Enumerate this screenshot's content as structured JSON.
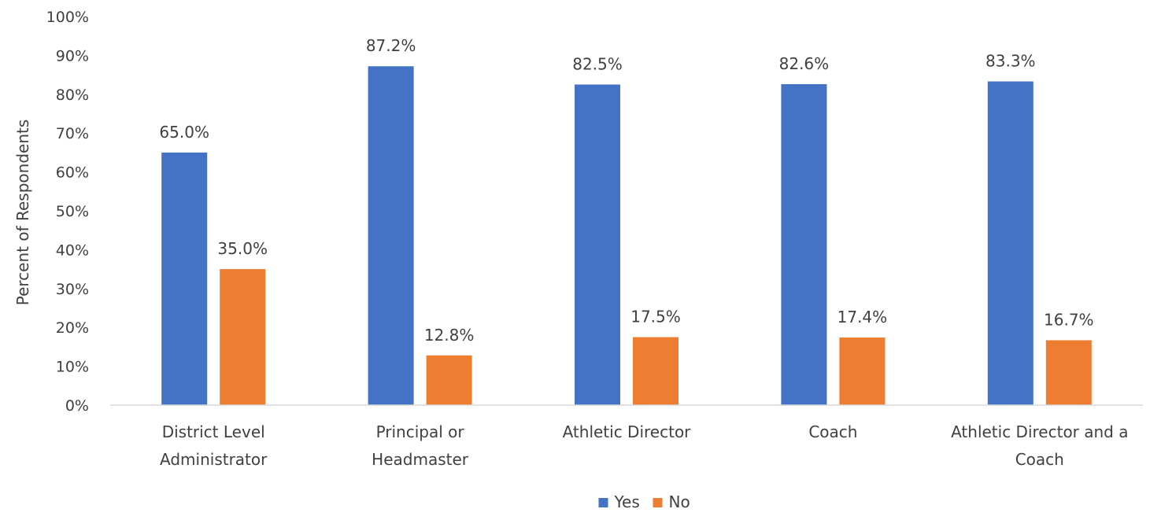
{
  "chart_data": {
    "type": "bar",
    "title": "",
    "xlabel": "",
    "ylabel": "Percent of Respondents",
    "ylim": [
      0,
      100
    ],
    "y_ticks": [
      "0%",
      "10%",
      "20%",
      "30%",
      "40%",
      "50%",
      "60%",
      "70%",
      "80%",
      "90%",
      "100%"
    ],
    "y_tick_values": [
      0,
      10,
      20,
      30,
      40,
      50,
      60,
      70,
      80,
      90,
      100
    ],
    "grid": false,
    "legend_position": "bottom",
    "categories": [
      [
        "District Level",
        "Administrator"
      ],
      [
        "Principal or",
        "Headmaster"
      ],
      [
        "Athletic Director"
      ],
      [
        "Coach"
      ],
      [
        "Athletic Director and a",
        "Coach"
      ]
    ],
    "series": [
      {
        "name": "Yes",
        "color": "#4472C4",
        "values": [
          65.0,
          87.2,
          82.5,
          82.6,
          83.3
        ],
        "labels": [
          "65.0%",
          "87.2%",
          "82.5%",
          "82.6%",
          "83.3%"
        ]
      },
      {
        "name": "No",
        "color": "#ED7D31",
        "values": [
          35.0,
          12.8,
          17.5,
          17.4,
          16.7
        ],
        "labels": [
          "35.0%",
          "12.8%",
          "17.5%",
          "17.4%",
          "16.7%"
        ]
      }
    ]
  }
}
